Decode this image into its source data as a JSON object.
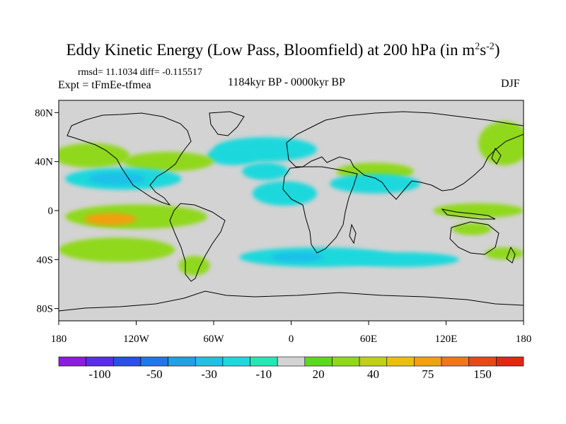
{
  "chart_data": {
    "type": "heatmap",
    "title_main": "Eddy Kinetic Energy (Low Pass, Bloomfield) at 200 hPa (in m",
    "title_sup1": "2",
    "title_mid": "s",
    "title_sup2": "-2",
    "title_end": ")",
    "stats": "rmsd= 11.1034 diff= -0.115517",
    "experiment": "Expt = tFmEe-tfmea",
    "period": "1184kyr BP - 0000kyr BP",
    "season": "DJF",
    "xlim": [
      -180,
      180
    ],
    "ylim": [
      -90,
      90
    ],
    "x_ticks": [
      {
        "value": -180,
        "label": "180"
      },
      {
        "value": -120,
        "label": "120W"
      },
      {
        "value": -60,
        "label": "60W"
      },
      {
        "value": 0,
        "label": "0"
      },
      {
        "value": 60,
        "label": "60E"
      },
      {
        "value": 120,
        "label": "120E"
      },
      {
        "value": 180,
        "label": "180"
      }
    ],
    "y_ticks": [
      {
        "value": 80,
        "label": "80N"
      },
      {
        "value": 40,
        "label": "40N"
      },
      {
        "value": 0,
        "label": "0"
      },
      {
        "value": -40,
        "label": "40S"
      },
      {
        "value": -80,
        "label": "80S"
      }
    ],
    "colorbar": {
      "colors": [
        "#8c1ce0",
        "#5a2ee8",
        "#2a50e8",
        "#1f78e8",
        "#1fa0e8",
        "#1fc0e8",
        "#1fd8dc",
        "#24e8b4",
        "#d3d3d3",
        "#5cd820",
        "#90d81c",
        "#c0d018",
        "#e8c010",
        "#f0a010",
        "#f07818",
        "#e84818",
        "#e02814"
      ],
      "labels": [
        {
          "boundary": 1.5,
          "text": "-100"
        },
        {
          "boundary": 3.5,
          "text": "-50"
        },
        {
          "boundary": 5.5,
          "text": "-30"
        },
        {
          "boundary": 7.5,
          "text": "-10"
        },
        {
          "boundary": 9.5,
          "text": "20"
        },
        {
          "boundary": 11.5,
          "text": "40"
        },
        {
          "boundary": 13.5,
          "text": "75"
        },
        {
          "boundary": 15.5,
          "text": "150"
        }
      ]
    },
    "anomaly_regions": [
      {
        "name": "n-atlantic-negative",
        "lon": -20,
        "lat": 50,
        "rlon": 40,
        "rlat": 10,
        "level": -10
      },
      {
        "name": "n-atlantic-negative-west",
        "lon": -45,
        "lat": 45,
        "rlon": 20,
        "rlat": 8,
        "level": -10
      },
      {
        "name": "n-pacific-positive",
        "lon": -155,
        "lat": 45,
        "rlon": 30,
        "rlat": 10,
        "level": 20
      },
      {
        "name": "n-america-positive",
        "lon": -95,
        "lat": 40,
        "rlon": 35,
        "rlat": 8,
        "level": 20
      },
      {
        "name": "n-pacific-subtropical-negative",
        "lon": -130,
        "lat": 26,
        "rlon": 45,
        "rlat": 9,
        "level": -10
      },
      {
        "name": "n-pacific-subtropical-core",
        "lon": -135,
        "lat": 26,
        "rlon": 22,
        "rlat": 5,
        "level": -30
      },
      {
        "name": "mediterranean-negative",
        "lon": -20,
        "lat": 32,
        "rlon": 18,
        "rlat": 7,
        "level": -10
      },
      {
        "name": "atlantic-subtropical-negative",
        "lon": -5,
        "lat": 14,
        "rlon": 25,
        "rlat": 10,
        "level": -10
      },
      {
        "name": "asia-positive",
        "lon": 65,
        "lat": 32,
        "rlon": 30,
        "rlat": 7,
        "level": 20
      },
      {
        "name": "asia-negative",
        "lon": 65,
        "lat": 22,
        "rlon": 35,
        "rlat": 8,
        "level": -10
      },
      {
        "name": "w-pacific-positive",
        "lon": 165,
        "lat": 55,
        "rlon": 20,
        "rlat": 18,
        "level": 20
      },
      {
        "name": "e-pacific-tropical-positive",
        "lon": -120,
        "lat": -5,
        "rlon": 55,
        "rlat": 10,
        "level": 20
      },
      {
        "name": "e-pacific-tropical-core",
        "lon": -140,
        "lat": -7,
        "rlon": 20,
        "rlat": 5,
        "level": 50
      },
      {
        "name": "indonesia-positive",
        "lon": 145,
        "lat": 0,
        "rlon": 35,
        "rlat": 6,
        "level": 20
      },
      {
        "name": "australia-positive",
        "lon": 140,
        "lat": -15,
        "rlon": 15,
        "rlat": 5,
        "level": 20
      },
      {
        "name": "s-pacific-positive",
        "lon": -135,
        "lat": -32,
        "rlon": 45,
        "rlat": 10,
        "level": 20
      },
      {
        "name": "s-america-positive",
        "lon": -75,
        "lat": -45,
        "rlon": 12,
        "rlat": 8,
        "level": 20
      },
      {
        "name": "s-atlantic-negative",
        "lon": 20,
        "lat": -38,
        "rlon": 60,
        "rlat": 8,
        "level": -10
      },
      {
        "name": "s-indian-negative",
        "lon": 85,
        "lat": -40,
        "rlon": 45,
        "rlat": 6,
        "level": -10
      },
      {
        "name": "s-atlantic-core",
        "lon": 5,
        "lat": -38,
        "rlon": 20,
        "rlat": 4,
        "level": -30
      },
      {
        "name": "s-pacific-east-positive",
        "lon": 165,
        "lat": -35,
        "rlon": 15,
        "rlat": 5,
        "level": 20
      }
    ]
  }
}
